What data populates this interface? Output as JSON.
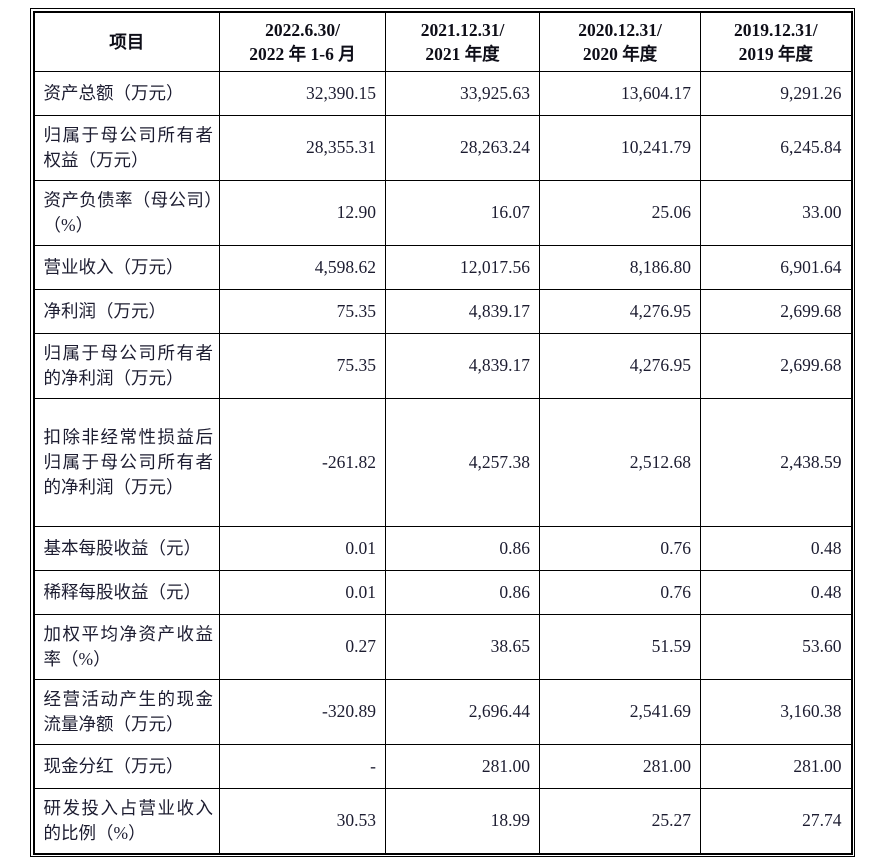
{
  "table": {
    "columns": [
      {
        "label": "项目"
      },
      {
        "line1": "2022.6.30/",
        "line2": "2022 年 1-6 月"
      },
      {
        "line1": "2021.12.31/",
        "line2": "2021 年度"
      },
      {
        "line1": "2020.12.31/",
        "line2": "2020 年度"
      },
      {
        "line1": "2019.12.31/",
        "line2": "2019 年度"
      }
    ],
    "rows": [
      {
        "label": "资产总额（万元）",
        "values": [
          "32,390.15",
          "33,925.63",
          "13,604.17",
          "9,291.26"
        ]
      },
      {
        "label": "归属于母公司所有者权益（万元）",
        "values": [
          "28,355.31",
          "28,263.24",
          "10,241.79",
          "6,245.84"
        ]
      },
      {
        "label": "资产负债率（母公司）（%）",
        "values": [
          "12.90",
          "16.07",
          "25.06",
          "33.00"
        ]
      },
      {
        "label": "营业收入（万元）",
        "values": [
          "4,598.62",
          "12,017.56",
          "8,186.80",
          "6,901.64"
        ]
      },
      {
        "label": "净利润（万元）",
        "values": [
          "75.35",
          "4,839.17",
          "4,276.95",
          "2,699.68"
        ]
      },
      {
        "label": "归属于母公司所有者的净利润（万元）",
        "values": [
          "75.35",
          "4,839.17",
          "4,276.95",
          "2,699.68"
        ]
      },
      {
        "label": "扣除非经常性损益后归属于母公司所有者的净利润（万元）",
        "values": [
          "-261.82",
          "4,257.38",
          "2,512.68",
          "2,438.59"
        ]
      },
      {
        "label": "基本每股收益（元）",
        "values": [
          "0.01",
          "0.86",
          "0.76",
          "0.48"
        ]
      },
      {
        "label": "稀释每股收益（元）",
        "values": [
          "0.01",
          "0.86",
          "0.76",
          "0.48"
        ]
      },
      {
        "label": "加权平均净资产收益率（%）",
        "values": [
          "0.27",
          "38.65",
          "51.59",
          "53.60"
        ]
      },
      {
        "label": "经营活动产生的现金流量净额（万元）",
        "values": [
          "-320.89",
          "2,696.44",
          "2,541.69",
          "3,160.38"
        ]
      },
      {
        "label": "现金分红（万元）",
        "values": [
          "-",
          "281.00",
          "281.00",
          "281.00"
        ]
      },
      {
        "label": "研发投入占营业收入的比例（%）",
        "values": [
          "30.53",
          "18.99",
          "25.27",
          "27.74"
        ]
      }
    ],
    "colors": {
      "ink": "#1c1c30",
      "border": "#000000",
      "background": "#ffffff"
    }
  }
}
